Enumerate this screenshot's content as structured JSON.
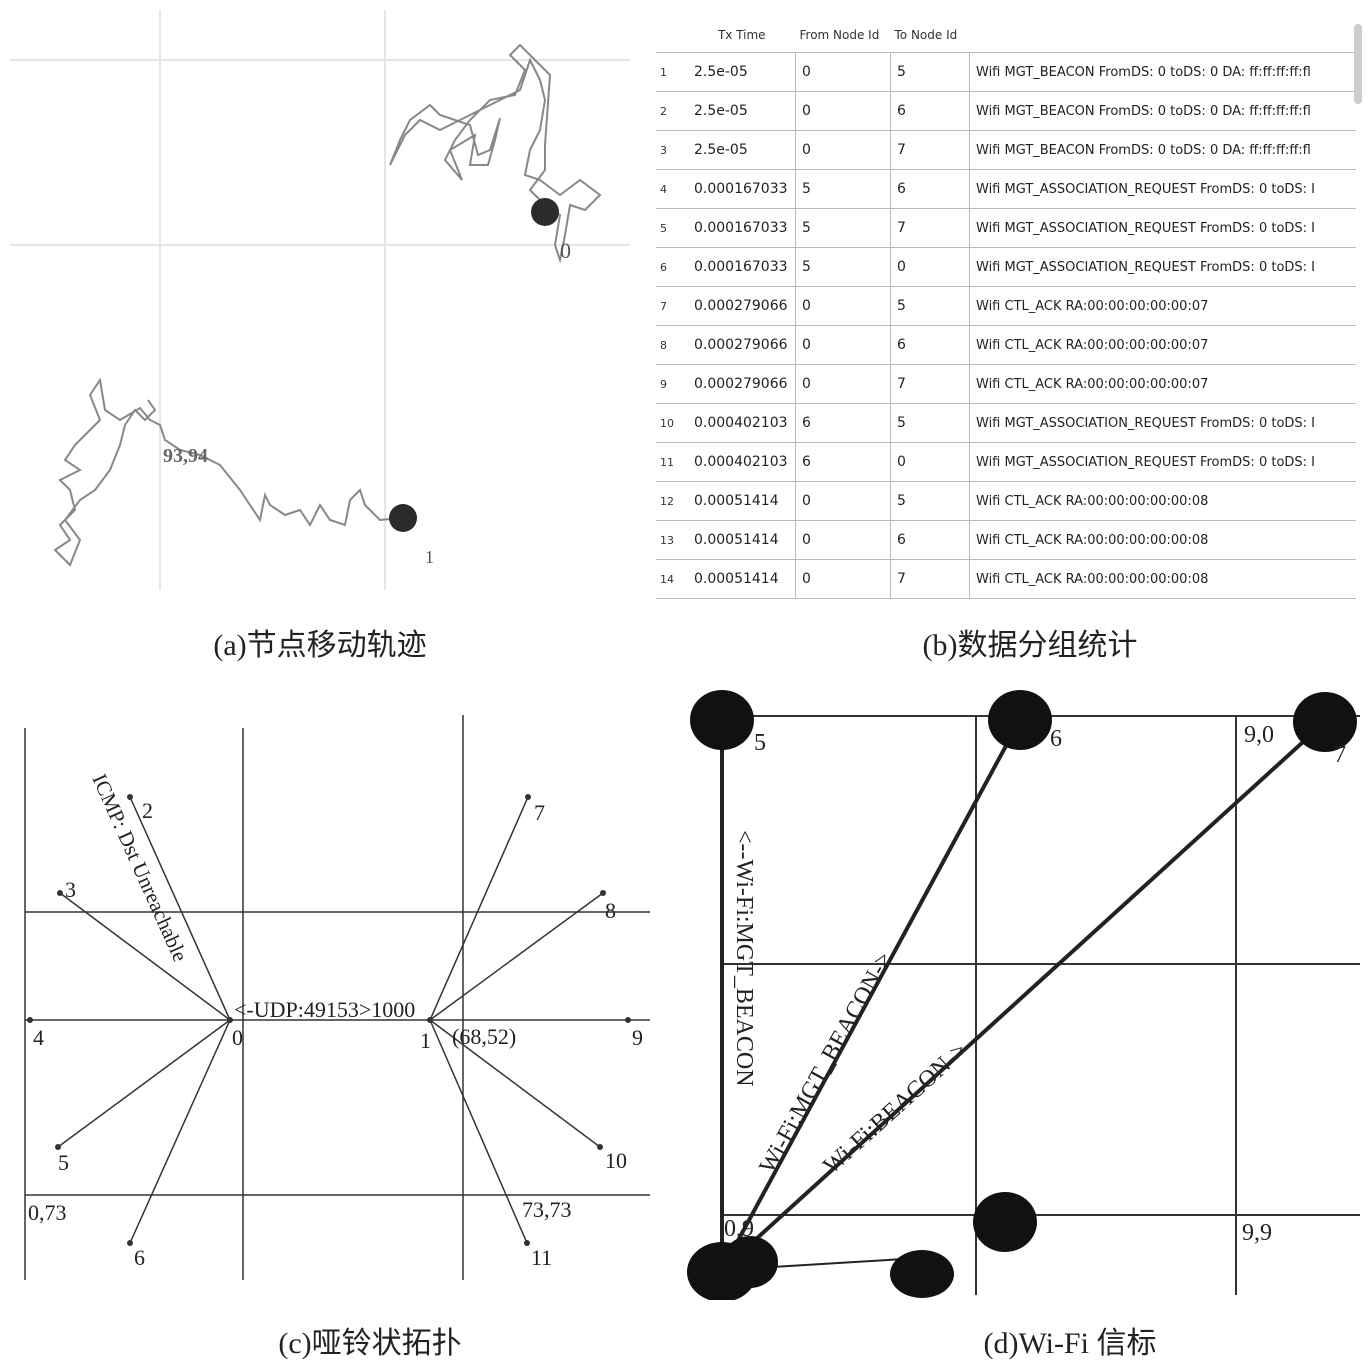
{
  "captions": {
    "a": "(a)节点移动轨迹",
    "b": "(b)数据分组统计",
    "c": "(c)哑铃状拓扑",
    "d": "(d)Wi-Fi 信标"
  },
  "panel_a": {
    "node_top_label": "0",
    "node_bottom_label": "1",
    "coord_label": "93,94"
  },
  "panel_b": {
    "columns": [
      "Tx Time",
      "From Node Id",
      "To Node Id"
    ],
    "rows": [
      {
        "idx": "1",
        "tx": "2.5e-05",
        "from": "0",
        "to": "5",
        "info": "Wifi MGT_BEACON FromDS: 0 toDS: 0 DA: ff:ff:ff:ff:fl"
      },
      {
        "idx": "2",
        "tx": "2.5e-05",
        "from": "0",
        "to": "6",
        "info": "Wifi MGT_BEACON FromDS: 0 toDS: 0 DA: ff:ff:ff:ff:fl"
      },
      {
        "idx": "3",
        "tx": "2.5e-05",
        "from": "0",
        "to": "7",
        "info": "Wifi MGT_BEACON FromDS: 0 toDS: 0 DA: ff:ff:ff:ff:fl"
      },
      {
        "idx": "4",
        "tx": "0.000167033",
        "from": "5",
        "to": "6",
        "info": "Wifi MGT_ASSOCIATION_REQUEST FromDS: 0 toDS: I"
      },
      {
        "idx": "5",
        "tx": "0.000167033",
        "from": "5",
        "to": "7",
        "info": "Wifi MGT_ASSOCIATION_REQUEST FromDS: 0 toDS: I"
      },
      {
        "idx": "6",
        "tx": "0.000167033",
        "from": "5",
        "to": "0",
        "info": "Wifi MGT_ASSOCIATION_REQUEST FromDS: 0 toDS: I"
      },
      {
        "idx": "7",
        "tx": "0.000279066",
        "from": "0",
        "to": "5",
        "info": "Wifi CTL_ACK RA:00:00:00:00:00:07"
      },
      {
        "idx": "8",
        "tx": "0.000279066",
        "from": "0",
        "to": "6",
        "info": "Wifi CTL_ACK RA:00:00:00:00:00:07"
      },
      {
        "idx": "9",
        "tx": "0.000279066",
        "from": "0",
        "to": "7",
        "info": "Wifi CTL_ACK RA:00:00:00:00:00:07"
      },
      {
        "idx": "10",
        "tx": "0.000402103",
        "from": "6",
        "to": "5",
        "info": "Wifi MGT_ASSOCIATION_REQUEST FromDS: 0 toDS: I"
      },
      {
        "idx": "11",
        "tx": "0.000402103",
        "from": "6",
        "to": "0",
        "info": "Wifi MGT_ASSOCIATION_REQUEST FromDS: 0 toDS: I"
      },
      {
        "idx": "12",
        "tx": "0.00051414",
        "from": "0",
        "to": "5",
        "info": "Wifi CTL_ACK RA:00:00:00:00:00:08"
      },
      {
        "idx": "13",
        "tx": "0.00051414",
        "from": "0",
        "to": "6",
        "info": "Wifi CTL_ACK RA:00:00:00:00:00:08"
      },
      {
        "idx": "14",
        "tx": "0.00051414",
        "from": "0",
        "to": "7",
        "info": "Wifi CTL_ACK RA:00:00:00:00:00:08"
      }
    ]
  },
  "panel_c": {
    "nodes": [
      "0",
      "1",
      "2",
      "3",
      "4",
      "5",
      "6",
      "7",
      "8",
      "9",
      "10",
      "11"
    ],
    "icmp_label": "ICMP: Dst Unreachable",
    "udp_label": "<-UDP:49153>1000",
    "coord_68_52": "(68,52)",
    "coord_0_73": "0,73",
    "coord_73_73": "73,73"
  },
  "panel_d": {
    "nodes": [
      "5",
      "6",
      "7"
    ],
    "coord_9_0": "9,0",
    "coord_0_9": "0,9",
    "coord_9_9": "9,9",
    "vertical_label": "<--Wi-Fi:MGT_BEACON",
    "label_mgt": "Wi-Fi:MGT_BEACON->",
    "label_beacon": "Wi-Fi:BEACON->"
  }
}
